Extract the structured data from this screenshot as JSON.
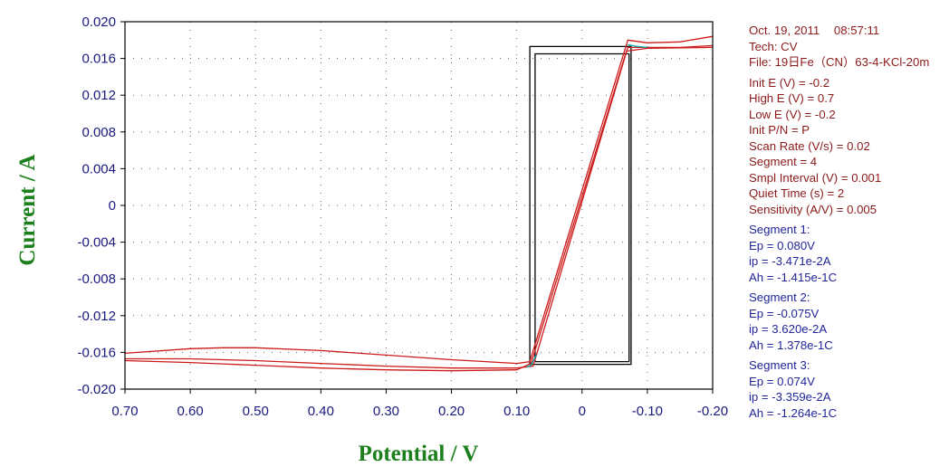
{
  "chart_data": {
    "type": "line",
    "xlabel": "Potential / V",
    "ylabel": "Current / A",
    "xlim": [
      0.7,
      -0.2
    ],
    "x_inverted": true,
    "ylim": [
      -0.02,
      0.02
    ],
    "x_ticks": [
      "0.70",
      "0.60",
      "0.50",
      "0.40",
      "0.30",
      "0.20",
      "0.10",
      "0",
      "-0.10",
      "-0.20"
    ],
    "y_ticks": [
      "0.020",
      "0.016",
      "0.012",
      "0.008",
      "0.004",
      "0",
      "-0.004",
      "-0.008",
      "-0.012",
      "-0.016",
      "-0.020"
    ],
    "grid": true,
    "grid_style": "dotted",
    "series": [
      {
        "color": "#000000",
        "points": [
          [
            0.08,
            -0.0173
          ],
          [
            0.08,
            0.0173
          ],
          [
            -0.075,
            0.0173
          ],
          [
            -0.075,
            -0.0173
          ],
          [
            0.08,
            -0.0173
          ]
        ]
      },
      {
        "color": "#000000",
        "points": [
          [
            0.072,
            -0.017
          ],
          [
            0.072,
            0.0165
          ],
          [
            -0.072,
            0.0165
          ],
          [
            -0.072,
            -0.017
          ],
          [
            0.072,
            -0.017
          ]
        ]
      },
      {
        "color": "#cc1a1a",
        "points": [
          [
            0.7,
            -0.0161
          ],
          [
            0.6,
            -0.0156
          ],
          [
            0.55,
            -0.0155
          ],
          [
            0.5,
            -0.0155
          ],
          [
            0.4,
            -0.0158
          ],
          [
            0.3,
            -0.0163
          ],
          [
            0.2,
            -0.0168
          ],
          [
            0.1,
            -0.0172
          ],
          [
            0.08,
            -0.017
          ],
          [
            -0.07,
            0.018
          ],
          [
            -0.1,
            0.0177
          ],
          [
            -0.15,
            0.0178
          ],
          [
            -0.2,
            0.0184
          ]
        ]
      },
      {
        "color": "#cc1a1a",
        "points": [
          [
            -0.2,
            0.0174
          ],
          [
            -0.15,
            0.0172
          ],
          [
            -0.1,
            0.0172
          ],
          [
            -0.07,
            0.0172
          ],
          [
            0.075,
            -0.0175
          ],
          [
            0.1,
            -0.0177
          ],
          [
            0.2,
            -0.0177
          ],
          [
            0.3,
            -0.0175
          ],
          [
            0.4,
            -0.0172
          ],
          [
            0.5,
            -0.0169
          ],
          [
            0.6,
            -0.0167
          ],
          [
            0.7,
            -0.0167
          ]
        ]
      },
      {
        "color": "#cc1a1a",
        "points": [
          [
            0.7,
            -0.0169
          ],
          [
            0.6,
            -0.0171
          ],
          [
            0.5,
            -0.0174
          ],
          [
            0.4,
            -0.0177
          ],
          [
            0.3,
            -0.0179
          ],
          [
            0.2,
            -0.018
          ],
          [
            0.1,
            -0.0179
          ],
          [
            0.078,
            -0.0172
          ],
          [
            -0.068,
            0.0168
          ],
          [
            -0.1,
            0.0171
          ],
          [
            -0.2,
            0.0172
          ]
        ]
      },
      {
        "color": "#00aaaa",
        "points": [
          [
            0.085,
            -0.0176
          ],
          [
            0.078,
            -0.0174
          ],
          [
            0.07,
            -0.0163
          ]
        ]
      },
      {
        "color": "#00aaaa",
        "points": [
          [
            -0.07,
            0.0175
          ],
          [
            -0.085,
            0.0173
          ],
          [
            -0.1,
            0.0172
          ]
        ]
      }
    ]
  },
  "info": {
    "header": {
      "date": "Oct. 19, 2011",
      "time": "08:57:11",
      "tech": "Tech: CV",
      "file": "File: 19日Fe（CN）63-4-KCl-20m"
    },
    "params": [
      "Init E (V) = -0.2",
      "High E (V) = 0.7",
      "Low E (V) = -0.2",
      "Init P/N = P",
      "Scan Rate (V/s) = 0.02",
      "Segment = 4",
      "Smpl Interval (V) = 0.001",
      "Quiet Time (s) = 2",
      "Sensitivity (A/V) = 0.005"
    ],
    "segments": [
      {
        "title": "Segment 1:",
        "ep": "Ep = 0.080V",
        "ip": "ip = -3.471e-2A",
        "ah": "Ah = -1.415e-1C"
      },
      {
        "title": "Segment 2:",
        "ep": "Ep = -0.075V",
        "ip": "ip = 3.620e-2A",
        "ah": "Ah = 1.378e-1C"
      },
      {
        "title": "Segment 3:",
        "ep": "Ep = 0.074V",
        "ip": "ip = -3.359e-2A",
        "ah": "Ah = -1.264e-1C"
      }
    ]
  }
}
